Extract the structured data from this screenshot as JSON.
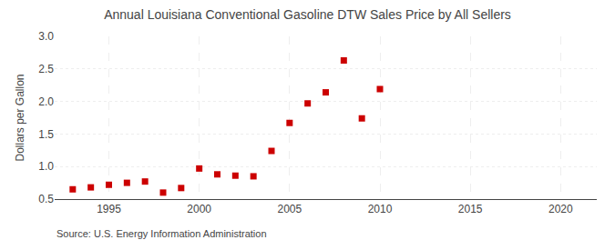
{
  "chart_data": {
    "type": "scatter",
    "title": "Annual Louisiana Conventional Gasoline DTW Sales Price by All Sellers",
    "ylabel": "Dollars per Gallon",
    "source": "Source: U.S. Energy Information Administration",
    "x": [
      1993,
      1994,
      1995,
      1996,
      1997,
      1998,
      1999,
      2000,
      2001,
      2002,
      2003,
      2004,
      2005,
      2006,
      2007,
      2008,
      2009,
      2010
    ],
    "values": [
      0.65,
      0.68,
      0.72,
      0.75,
      0.77,
      0.6,
      0.67,
      0.97,
      0.88,
      0.86,
      0.85,
      1.24,
      1.67,
      1.97,
      2.14,
      2.63,
      1.74,
      2.19
    ],
    "xlim": [
      1992,
      2022
    ],
    "ylim": [
      0.5,
      3.0
    ],
    "xticks": [
      1995,
      2000,
      2005,
      2010,
      2015,
      2020
    ],
    "yticks": [
      0.5,
      {
        "value": 1,
        "label": "1.0"
      },
      1.5,
      {
        "value": 2,
        "label": "2.0"
      },
      2.5,
      {
        "value": 3,
        "label": "3.0"
      }
    ],
    "color": "#cc0000",
    "marker": "square",
    "grid": true
  }
}
